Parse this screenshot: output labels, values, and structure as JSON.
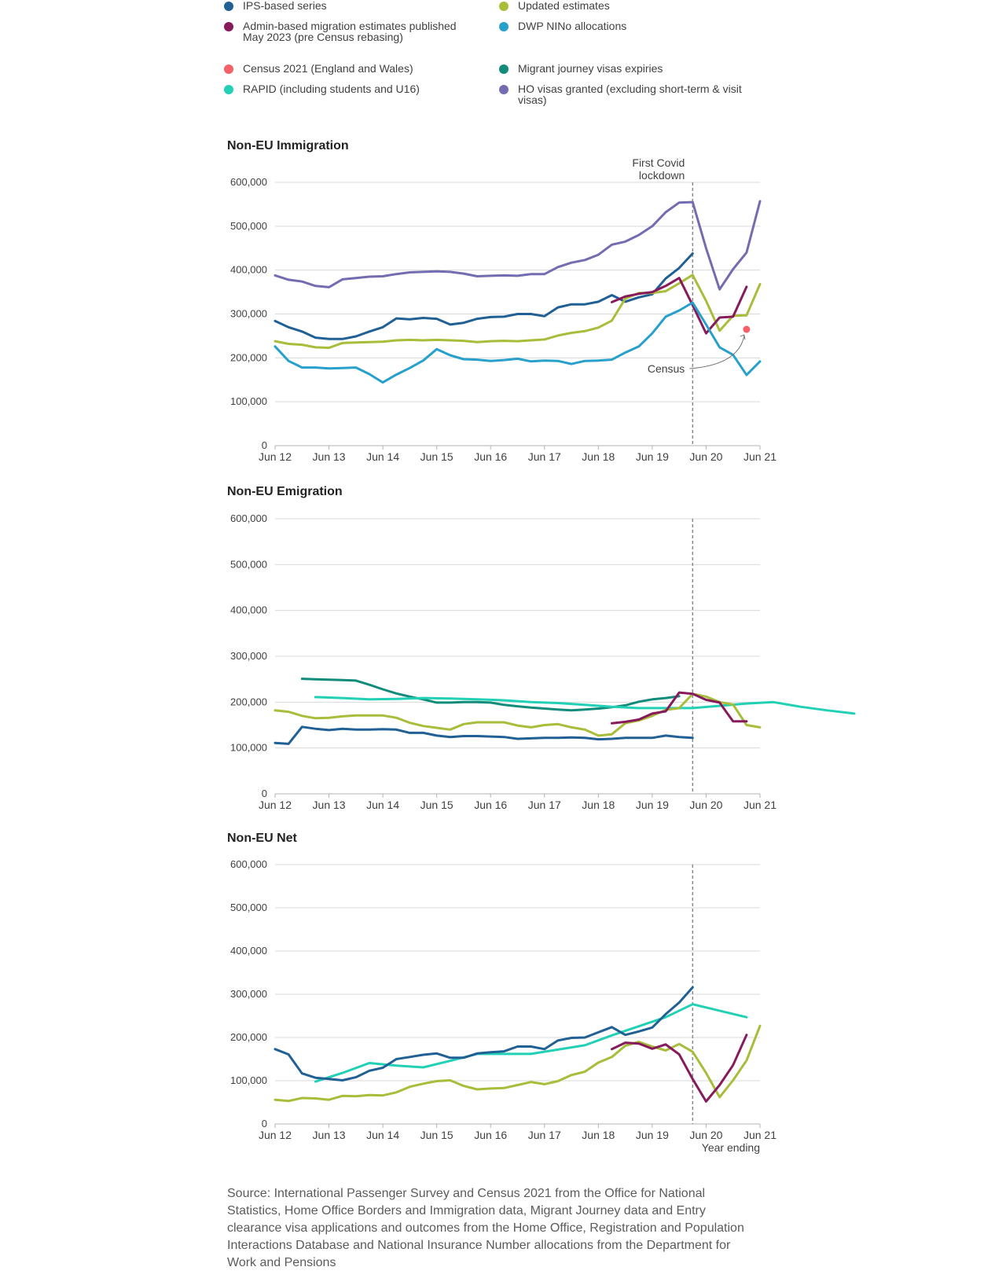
{
  "legend": [
    {
      "id": "ips",
      "label": "IPS-based series",
      "color": "#206095",
      "col": 0,
      "row": 0
    },
    {
      "id": "updated",
      "label": "Updated estimates",
      "color": "#a8bd3a",
      "col": 1,
      "row": 0
    },
    {
      "id": "admin",
      "label": "Admin-based migration estimates published May 2023 (pre Census rebasing)",
      "color": "#871a5b",
      "col": 0,
      "row": 1
    },
    {
      "id": "nino",
      "label": "DWP NINo allocations",
      "color": "#27a0cc",
      "col": 1,
      "row": 1
    },
    {
      "id": "census",
      "label": "Census 2021 (England and Wales)",
      "color": "#f66068",
      "col": 0,
      "row": 2
    },
    {
      "id": "mj",
      "label": "Migrant journey visas expiries",
      "color": "#118c7b",
      "col": 1,
      "row": 2
    },
    {
      "id": "rapid",
      "label": "RAPID (including students and U16)",
      "color": "#22d0b6",
      "col": 0,
      "row": 3
    },
    {
      "id": "ho",
      "label": "HO visas granted (excluding short-term & visit visas)",
      "color": "#746cb1",
      "col": 1,
      "row": 3
    }
  ],
  "source": "Source: International Passenger Survey and Census 2021 from the Office for National Statistics, Home Office Borders and Immigration data, Migrant Journey data and Entry clearance visa applications and outcomes from the Home Office, Registration and Population Interactions Database and National Insurance Number allocations from the Department for Work and Pensions",
  "chart_data": [
    {
      "type": "line",
      "title": "Non-EU Immigration",
      "x_label": "",
      "x_ticks": [
        "Jun 12",
        "Jun 13",
        "Jun 14",
        "Jun 15",
        "Jun 16",
        "Jun 17",
        "Jun 18",
        "Jun 19",
        "Jun 20",
        "Jun 21"
      ],
      "x_range": [
        2012.5,
        2021.5
      ],
      "ylim": [
        0,
        600000
      ],
      "y_ticks": [
        "0",
        "100,000",
        "200,000",
        "300,000",
        "400,000",
        "500,000",
        "600,000"
      ],
      "grid": true,
      "vline": {
        "x": 2020.25,
        "label_lines": [
          "First Covid",
          "lockdown"
        ]
      },
      "census_point": {
        "x": 2021.25,
        "y": 265000,
        "label": "Census"
      },
      "series": [
        {
          "name": "HO visas granted (excluding short-term & visit visas)",
          "color": "#746cb1",
          "x_start": 2012.5,
          "step": 0.25,
          "values": [
            388000,
            378000,
            374000,
            364000,
            361000,
            379000,
            382000,
            385000,
            386000,
            391000,
            395000,
            396000,
            397000,
            396000,
            392000,
            386000,
            387000,
            388000,
            387000,
            391000,
            391000,
            407000,
            417000,
            423000,
            435000,
            458000,
            465000,
            480000,
            500000,
            532000,
            554000,
            555000,
            450000,
            356000,
            402000,
            440000,
            557000
          ]
        },
        {
          "name": "IPS-based series",
          "color": "#206095",
          "x_start": 2012.5,
          "step": 0.25,
          "values": [
            284000,
            270000,
            260000,
            246000,
            243000,
            243000,
            249000,
            260000,
            270000,
            290000,
            288000,
            291000,
            289000,
            276000,
            280000,
            289000,
            293000,
            294000,
            300000,
            300000,
            295000,
            315000,
            322000,
            322000,
            328000,
            343000,
            328000,
            338000,
            345000,
            381000,
            405000,
            438000
          ]
        },
        {
          "name": "Updated estimates",
          "color": "#a8bd3a",
          "x_start": 2012.5,
          "step": 0.25,
          "values": [
            238000,
            232000,
            230000,
            224000,
            223000,
            234000,
            235000,
            236000,
            237000,
            240000,
            241000,
            240000,
            241000,
            240000,
            239000,
            236000,
            238000,
            239000,
            238000,
            240000,
            242000,
            251000,
            257000,
            261000,
            269000,
            285000,
            335000,
            348000,
            348000,
            352000,
            370000,
            389000,
            330000,
            262000,
            296000,
            297000,
            368000
          ]
        },
        {
          "name": "Admin-based migration estimates published May 2023 (pre Census rebasing)",
          "color": "#871a5b",
          "x_start": 2018.75,
          "step": 0.25,
          "values": [
            327000,
            340000,
            346000,
            350000,
            364000,
            382000,
            320000,
            256000,
            292000,
            294000,
            362000
          ]
        },
        {
          "name": "DWP NINo allocations",
          "color": "#27a0cc",
          "x_start": 2012.5,
          "step": 0.25,
          "values": [
            226000,
            193000,
            178000,
            178000,
            176000,
            177000,
            178000,
            163000,
            144000,
            162000,
            177000,
            194000,
            220000,
            206000,
            197000,
            196000,
            193000,
            195000,
            198000,
            192000,
            194000,
            193000,
            186000,
            193000,
            194000,
            196000,
            212000,
            226000,
            256000,
            294000,
            308000,
            326000,
            276000,
            224000,
            207000,
            161000,
            192000
          ]
        }
      ]
    },
    {
      "type": "line",
      "title": "Non-EU Emigration",
      "x_label": "",
      "x_ticks": [
        "Jun 12",
        "Jun 13",
        "Jun 14",
        "Jun 15",
        "Jun 16",
        "Jun 17",
        "Jun 18",
        "Jun 19",
        "Jun 20",
        "Jun 21"
      ],
      "x_range": [
        2012.5,
        2021.5
      ],
      "ylim": [
        0,
        600000
      ],
      "y_ticks": [
        "0",
        "100,000",
        "200,000",
        "300,000",
        "400,000",
        "500,000",
        "600,000"
      ],
      "grid": true,
      "vline": {
        "x": 2020.25
      },
      "series": [
        {
          "name": "Migrant journey visas expiries",
          "color": "#118c7b",
          "x_start": 2013.0,
          "step": 0.25,
          "values": [
            251000,
            250000,
            249000,
            248000,
            247000,
            238000,
            228000,
            219000,
            212000,
            206000,
            199000,
            199000,
            200000,
            200000,
            199000,
            194000,
            191000,
            188000,
            186000,
            184000,
            182000,
            184000,
            186000,
            189000,
            193000,
            201000,
            206000,
            209000,
            213000
          ]
        },
        {
          "name": "RAPID (including students and U16)",
          "color": "#22d0b6",
          "x_start": 2013.25,
          "step": 0.5,
          "values": [
            211000,
            209000,
            206000,
            207000,
            209000,
            208000,
            206000,
            204000,
            200000,
            198000,
            194000,
            190000,
            187000,
            187000,
            187000,
            192000,
            197000,
            200000,
            190000,
            182000,
            175000
          ]
        },
        {
          "name": "Updated estimates",
          "color": "#a8bd3a",
          "x_start": 2012.5,
          "step": 0.25,
          "values": [
            182000,
            179000,
            170000,
            165000,
            166000,
            169000,
            171000,
            171000,
            171000,
            166000,
            155000,
            148000,
            144000,
            140000,
            152000,
            156000,
            156000,
            156000,
            149000,
            145000,
            150000,
            152000,
            145000,
            140000,
            127000,
            130000,
            154000,
            160000,
            170000,
            183000,
            187000,
            218000,
            212000,
            200000,
            195000,
            150000,
            145000
          ]
        },
        {
          "name": "Admin-based migration estimates published May 2023 (pre Census rebasing)",
          "color": "#871a5b",
          "x_start": 2018.75,
          "step": 0.25,
          "values": [
            154000,
            157000,
            162000,
            175000,
            180000,
            221000,
            218000,
            205000,
            199000,
            158000,
            158000
          ]
        },
        {
          "name": "IPS-based series",
          "color": "#206095",
          "x_start": 2012.5,
          "step": 0.25,
          "values": [
            111000,
            109000,
            146000,
            142000,
            139000,
            142000,
            140000,
            140000,
            141000,
            140000,
            133000,
            133000,
            127000,
            124000,
            126000,
            126000,
            125000,
            124000,
            120000,
            121000,
            122000,
            122000,
            123000,
            122000,
            119000,
            120000,
            122000,
            122000,
            122000,
            127000,
            124000,
            122000
          ]
        }
      ]
    },
    {
      "type": "line",
      "title": "Non-EU Net",
      "x_label": "Year ending",
      "x_ticks": [
        "Jun 12",
        "Jun 13",
        "Jun 14",
        "Jun 15",
        "Jun 16",
        "Jun 17",
        "Jun 18",
        "Jun 19",
        "Jun 20",
        "Jun 21"
      ],
      "x_range": [
        2012.5,
        2021.5
      ],
      "ylim": [
        0,
        600000
      ],
      "y_ticks": [
        "0",
        "100,000",
        "200,000",
        "300,000",
        "400,000",
        "500,000",
        "600,000"
      ],
      "grid": true,
      "vline": {
        "x": 2020.25
      },
      "series": [
        {
          "name": "RAPID (including students and U16)",
          "color": "#22d0b6",
          "x_start": 2013.25,
          "step": 0.5,
          "values": [
            98000,
            118000,
            141000,
            135000,
            131000,
            146000,
            162000,
            162000,
            162000,
            172000,
            182000,
            205000,
            226000,
            247000,
            277000,
            262000,
            247000
          ]
        },
        {
          "name": "IPS-based series",
          "color": "#206095",
          "x_start": 2012.5,
          "step": 0.25,
          "values": [
            173000,
            161000,
            117000,
            107000,
            104000,
            101000,
            108000,
            123000,
            130000,
            150000,
            155000,
            160000,
            163000,
            153000,
            153000,
            163000,
            166000,
            168000,
            179000,
            179000,
            173000,
            193000,
            199000,
            200000,
            212000,
            224000,
            206000,
            214000,
            223000,
            254000,
            281000,
            316000
          ]
        },
        {
          "name": "Updated estimates",
          "color": "#a8bd3a",
          "x_start": 2012.5,
          "step": 0.25,
          "values": [
            56000,
            53000,
            60000,
            59000,
            56000,
            65000,
            64000,
            67000,
            66000,
            73000,
            86000,
            93000,
            99000,
            101000,
            88000,
            80000,
            82000,
            83000,
            90000,
            97000,
            92000,
            99000,
            113000,
            121000,
            142000,
            155000,
            181000,
            190000,
            179000,
            170000,
            185000,
            167000,
            118000,
            62000,
            101000,
            147000,
            227000
          ]
        },
        {
          "name": "Admin-based migration estimates published May 2023 (pre Census rebasing)",
          "color": "#871a5b",
          "x_start": 2018.75,
          "step": 0.25,
          "values": [
            173000,
            188000,
            186000,
            174000,
            184000,
            161000,
            104000,
            52000,
            90000,
            136000,
            206000
          ]
        }
      ]
    }
  ]
}
